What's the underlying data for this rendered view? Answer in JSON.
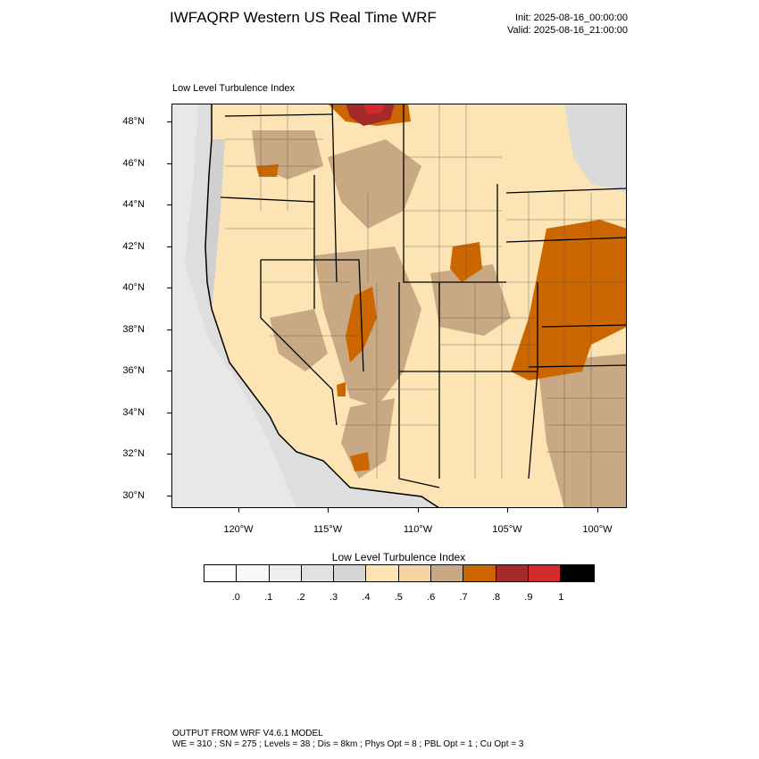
{
  "header": {
    "title": "IWFAQRP Western US Real Time WRF",
    "init": "Init: 2025-08-16_00:00:00",
    "valid": "Valid: 2025-08-16_21:00:00"
  },
  "map": {
    "field_label": "Low Level Turbulence Index",
    "lat_labels": [
      "48°N",
      "46°N",
      "44°N",
      "42°N",
      "40°N",
      "38°N",
      "36°N",
      "34°N",
      "32°N",
      "30°N"
    ],
    "lon_labels": [
      "120°W",
      "115°W",
      "110°W",
      "105°W",
      "100°W"
    ],
    "colors": {
      "ocean": "#dcdcdc",
      "ocean_light": "#ebebeb",
      "level_04": "#fde4b4",
      "level_05": "#f5d4a3",
      "level_06": "#c9a983",
      "level_07": "#cc6600",
      "level_08": "#a52a2a",
      "level_09": "#d42a2a"
    }
  },
  "colorbar": {
    "title": "Low Level Turbulence Index",
    "labels": [
      ".0",
      ".1",
      ".2",
      ".3",
      ".4",
      ".5",
      ".6",
      ".7",
      ".8",
      ".9",
      "1"
    ],
    "colors": [
      "#ffffff",
      "#f8f8f8",
      "#efefef",
      "#e1e1e1",
      "#d4d4d4",
      "#fde4b4",
      "#f5d4a3",
      "#c9a983",
      "#cc6600",
      "#a52a2a",
      "#d42a2a",
      "#000000"
    ]
  },
  "footer": {
    "line1": "OUTPUT FROM WRF V4.6.1 MODEL",
    "line2": "WE = 310 ; SN = 275 ; Levels = 38 ; Dis = 8km ; Phys Opt = 8 ; PBL Opt = 1 ; Cu Opt = 3"
  }
}
